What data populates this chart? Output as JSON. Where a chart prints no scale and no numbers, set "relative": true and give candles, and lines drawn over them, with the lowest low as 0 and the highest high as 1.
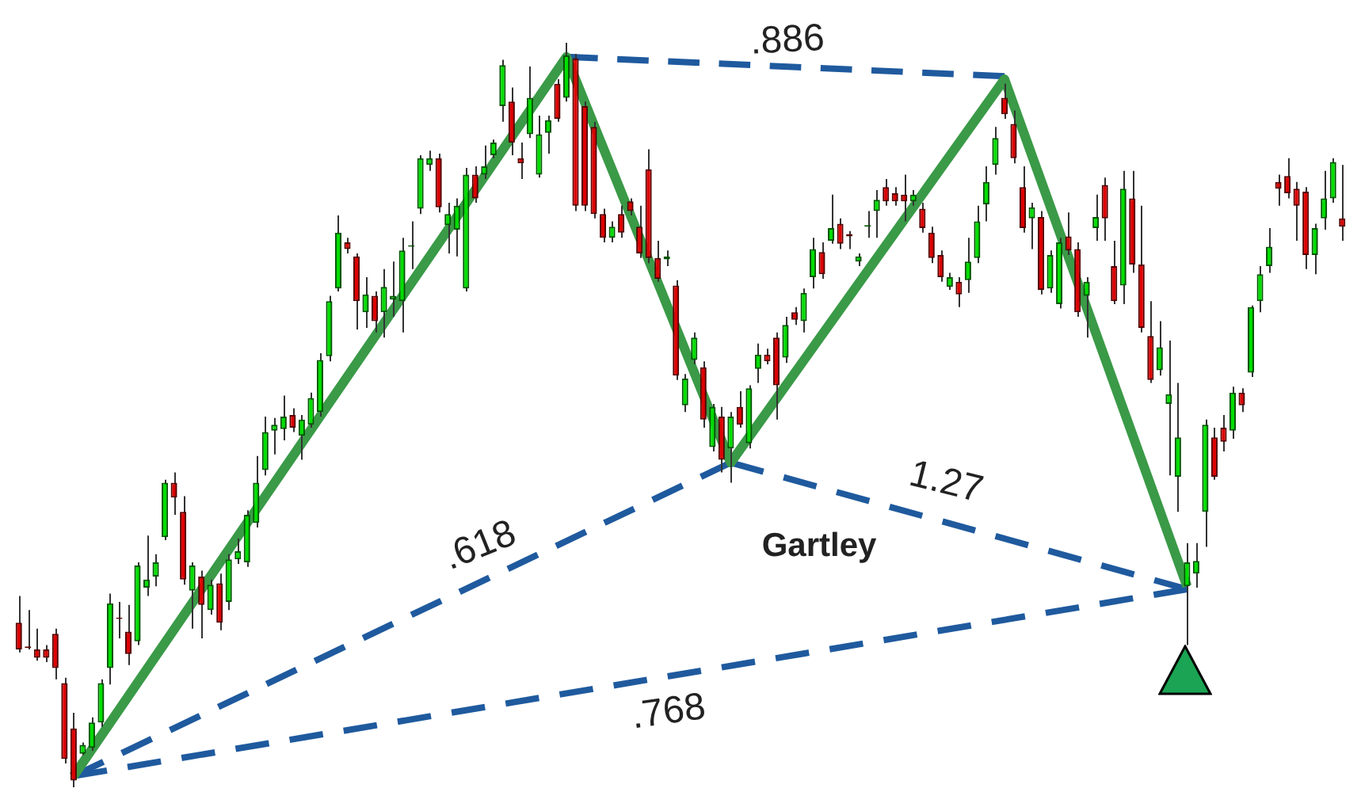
{
  "chart_data": {
    "type": "candlestick",
    "relative": true,
    "marker": "none",
    "annotations": [
      ".886",
      ".618",
      "1.27",
      ".768",
      "Gartley"
    ],
    "categories": [
      null,
      null,
      null,
      null,
      null,
      null,
      null,
      null,
      null,
      null,
      null,
      null,
      null,
      null,
      null,
      null,
      null,
      null,
      null,
      null,
      null,
      null,
      null,
      null,
      null,
      null,
      null,
      null,
      null,
      null,
      null,
      null,
      null,
      null,
      null,
      null,
      null,
      null,
      null,
      null,
      null,
      null,
      null,
      null,
      null,
      null,
      null,
      null,
      null,
      null,
      null,
      null,
      null,
      null,
      null,
      null,
      null,
      null,
      null,
      null,
      null,
      null,
      null,
      null,
      null,
      null,
      null,
      null,
      null,
      null,
      null,
      null,
      null,
      null,
      null,
      null,
      null,
      null,
      null,
      null,
      null,
      null,
      null,
      null,
      null,
      null,
      null,
      null,
      null,
      null,
      null,
      null,
      null,
      null,
      null,
      null,
      null,
      null,
      null,
      null,
      null,
      null,
      null,
      null,
      null,
      null,
      null,
      null,
      null,
      null,
      null,
      null,
      null,
      null,
      null,
      null,
      null,
      null,
      null,
      null,
      null,
      null,
      null,
      null,
      null,
      null,
      null,
      null,
      null,
      null,
      null,
      null,
      null,
      null,
      null,
      null,
      null,
      null,
      null,
      null,
      null,
      null,
      null,
      null,
      null,
      null
    ],
    "ohlc": [
      [
        0.221,
        0.257,
        0.181,
        0.185
      ],
      [
        0.189,
        0.238,
        0.185,
        0.187
      ],
      [
        0.185,
        0.213,
        0.17,
        0.174
      ],
      [
        0.185,
        0.191,
        0.168,
        0.174
      ],
      [
        0.206,
        0.213,
        0.145,
        0.16
      ],
      [
        0.14,
        0.147,
        0.032,
        0.038
      ],
      [
        0.079,
        0.1,
        0,
        0.009
      ],
      [
        0.045,
        0.06,
        0.043,
        0.057
      ],
      [
        0.053,
        0.094,
        0.049,
        0.087
      ],
      [
        0.087,
        0.145,
        0.081,
        0.14
      ],
      [
        0.16,
        0.26,
        0.138,
        0.247
      ],
      [
        0.228,
        0.249,
        0.2,
        0.226
      ],
      [
        0.209,
        0.245,
        0.164,
        0.179
      ],
      [
        0.196,
        0.302,
        0.191,
        0.298
      ],
      [
        0.268,
        0.338,
        0.257,
        0.279
      ],
      [
        0.283,
        0.313,
        0.27,
        0.302
      ],
      [
        0.336,
        0.413,
        0.332,
        0.409
      ],
      [
        0.409,
        0.423,
        0.366,
        0.389
      ],
      [
        0.37,
        0.391,
        0.272,
        0.279
      ],
      [
        0.264,
        0.302,
        0.213,
        0.298
      ],
      [
        0.283,
        0.291,
        0.2,
        0.245
      ],
      [
        0.238,
        0.279,
        0.232,
        0.272
      ],
      [
        0.274,
        0.287,
        0.211,
        0.221
      ],
      [
        0.249,
        0.313,
        0.238,
        0.306
      ],
      [
        0.306,
        0.334,
        0.3,
        0.317
      ],
      [
        0.302,
        0.372,
        0.296,
        0.366
      ],
      [
        0.355,
        0.445,
        0.349,
        0.409
      ],
      [
        0.426,
        0.498,
        0.419,
        0.477
      ],
      [
        0.479,
        0.496,
        0.447,
        0.487
      ],
      [
        0.481,
        0.526,
        0.466,
        0.498
      ],
      [
        0.5,
        0.509,
        0.477,
        0.483
      ],
      [
        0.472,
        0.5,
        0.44,
        0.494
      ],
      [
        0.487,
        0.53,
        0.483,
        0.523
      ],
      [
        0.504,
        0.583,
        0.498,
        0.574
      ],
      [
        0.579,
        0.66,
        0.572,
        0.653
      ],
      [
        0.67,
        0.768,
        0.666,
        0.745
      ],
      [
        0.732,
        0.738,
        0.717,
        0.723
      ],
      [
        0.713,
        0.717,
        0.615,
        0.653
      ],
      [
        0.638,
        0.685,
        0.617,
        0.662
      ],
      [
        0.66,
        0.666,
        0.611,
        0.626
      ],
      [
        0.638,
        0.696,
        0.604,
        0.672
      ],
      [
        0.655,
        0.706,
        0.632,
        0.66
      ],
      [
        0.653,
        0.738,
        0.611,
        0.721
      ],
      [
        0.726,
        0.76,
        0.696,
        0.728
      ],
      [
        0.777,
        0.849,
        0.77,
        0.845
      ],
      [
        0.836,
        0.855,
        0.828,
        0.845
      ],
      [
        0.845,
        0.851,
        0.772,
        0.779
      ],
      [
        0.755,
        0.785,
        0.717,
        0.77
      ],
      [
        0.749,
        0.791,
        0.713,
        0.781
      ],
      [
        0.67,
        0.832,
        0.666,
        0.823
      ],
      [
        0.823,
        0.834,
        0.785,
        0.791
      ],
      [
        0.823,
        0.862,
        0.817,
        0.834
      ],
      [
        0.849,
        0.87,
        0.845,
        0.866
      ],
      [
        0.915,
        0.977,
        0.894,
        0.97
      ],
      [
        0.921,
        0.94,
        0.849,
        0.866
      ],
      [
        0.845,
        0.866,
        0.817,
        0.838
      ],
      [
        0.877,
        0.968,
        0.872,
        0.926
      ],
      [
        0.823,
        0.902,
        0.819,
        0.877
      ],
      [
        0.879,
        0.902,
        0.851,
        0.896
      ],
      [
        0.945,
        0.951,
        0.894,
        0.898
      ],
      [
        0.926,
        1,
        0.921,
        0.983
      ],
      [
        0.979,
        0.985,
        0.774,
        0.781
      ],
      [
        0.915,
        0.921,
        0.774,
        0.781
      ],
      [
        0.887,
        0.894,
        0.764,
        0.77
      ],
      [
        0.77,
        0.777,
        0.732,
        0.738
      ],
      [
        0.738,
        0.76,
        0.732,
        0.753
      ],
      [
        0.77,
        0.781,
        0.738,
        0.745
      ],
      [
        0.787,
        0.791,
        0.768,
        0.774
      ],
      [
        0.753,
        0.781,
        0.711,
        0.717
      ],
      [
        0.83,
        0.857,
        0.704,
        0.711
      ],
      [
        0.711,
        0.734,
        0.679,
        0.683
      ],
      [
        0.709,
        0.721,
        0.7,
        0.713
      ],
      [
        0.674,
        0.681,
        0.547,
        0.553
      ],
      [
        0.513,
        0.555,
        0.504,
        0.549
      ],
      [
        0.574,
        0.611,
        0.568,
        0.604
      ],
      [
        0.564,
        0.572,
        0.483,
        0.494
      ],
      [
        0.457,
        0.515,
        0.451,
        0.511
      ],
      [
        0.498,
        0.511,
        0.423,
        0.44
      ],
      [
        0.455,
        0.504,
        0.409,
        0.498
      ],
      [
        0.511,
        0.532,
        0.483,
        0.487
      ],
      [
        0.462,
        0.54,
        0.455,
        0.536
      ],
      [
        0.562,
        0.596,
        0.543,
        0.581
      ],
      [
        0.581,
        0.589,
        0.568,
        0.572
      ],
      [
        0.604,
        0.611,
        0.494,
        0.54
      ],
      [
        0.577,
        0.632,
        0.57,
        0.621
      ],
      [
        0.638,
        0.645,
        0.621,
        0.628
      ],
      [
        0.626,
        0.67,
        0.611,
        0.664
      ],
      [
        0.685,
        0.738,
        0.67,
        0.723
      ],
      [
        0.719,
        0.732,
        0.683,
        0.689
      ],
      [
        0.734,
        0.796,
        0.73,
        0.751
      ],
      [
        0.757,
        0.764,
        0.723,
        0.73
      ],
      [
        0.743,
        0.747,
        0.723,
        0.74
      ],
      [
        0.706,
        0.717,
        0.7,
        0.713
      ],
      [
        0.753,
        0.774,
        0.738,
        0.755
      ],
      [
        0.774,
        0.802,
        0.738,
        0.789
      ],
      [
        0.806,
        0.817,
        0.781,
        0.787
      ],
      [
        0.798,
        0.806,
        0.781,
        0.787
      ],
      [
        0.796,
        0.823,
        0.76,
        0.787
      ],
      [
        0.787,
        0.802,
        0.781,
        0.796
      ],
      [
        0.777,
        0.785,
        0.745,
        0.751
      ],
      [
        0.745,
        0.753,
        0.704,
        0.711
      ],
      [
        0.715,
        0.721,
        0.679,
        0.685
      ],
      [
        0.672,
        0.691,
        0.668,
        0.685
      ],
      [
        0.679,
        0.685,
        0.645,
        0.662
      ],
      [
        0.681,
        0.738,
        0.664,
        0.706
      ],
      [
        0.711,
        0.781,
        0.704,
        0.76
      ],
      [
        0.783,
        0.834,
        0.76,
        0.813
      ],
      [
        0.836,
        0.887,
        0.823,
        0.872
      ],
      [
        0.926,
        0.945,
        0.898,
        0.904
      ],
      [
        0.891,
        0.909,
        0.838,
        0.845
      ],
      [
        0.806,
        0.834,
        0.745,
        0.751
      ],
      [
        0.764,
        0.785,
        0.723,
        0.779
      ],
      [
        0.766,
        0.774,
        0.662,
        0.668
      ],
      [
        0.67,
        0.721,
        0.664,
        0.715
      ],
      [
        0.649,
        0.738,
        0.643,
        0.732
      ],
      [
        0.74,
        0.772,
        0.715,
        0.721
      ],
      [
        0.723,
        0.732,
        0.632,
        0.638
      ],
      [
        0.66,
        0.685,
        0.604,
        0.679
      ],
      [
        0.751,
        0.796,
        0.734,
        0.766
      ],
      [
        0.809,
        0.819,
        0.734,
        0.764
      ],
      [
        0.7,
        0.734,
        0.649,
        0.653
      ],
      [
        0.674,
        0.828,
        0.649,
        0.804
      ],
      [
        0.791,
        0.828,
        0.691,
        0.702
      ],
      [
        0.702,
        0.781,
        0.611,
        0.617
      ],
      [
        0.606,
        0.653,
        0.543,
        0.547
      ],
      [
        0.56,
        0.626,
        0.553,
        0.591
      ],
      [
        0.515,
        0.6,
        0.419,
        0.528
      ],
      [
        0.417,
        0.543,
        0.37,
        0.47
      ],
      [
        0.27,
        0.328,
        0.191,
        0.302
      ],
      [
        0.287,
        0.328,
        0.268,
        0.304
      ],
      [
        0.37,
        0.494,
        0.323,
        0.487
      ],
      [
        0.47,
        0.483,
        0.413,
        0.417
      ],
      [
        0.483,
        0.5,
        0.451,
        0.464
      ],
      [
        0.479,
        0.538,
        0.468,
        0.53
      ],
      [
        0.53,
        0.536,
        0.504,
        0.513
      ],
      [
        0.557,
        0.647,
        0.551,
        0.645
      ],
      [
        0.653,
        0.7,
        0.638,
        0.689
      ],
      [
        0.7,
        0.751,
        0.691,
        0.726
      ],
      [
        0.813,
        0.823,
        0.781,
        0.804
      ],
      [
        0.821,
        0.845,
        0.791,
        0.798
      ],
      [
        0.804,
        0.813,
        0.734,
        0.781
      ],
      [
        0.8,
        0.806,
        0.696,
        0.715
      ],
      [
        0.715,
        0.757,
        0.689,
        0.751
      ],
      [
        0.764,
        0.828,
        0.749,
        0.791
      ],
      [
        0.791,
        0.845,
        0.785,
        0.84
      ],
      [
        0.764,
        0.836,
        0.734,
        0.753
      ]
    ],
    "series": [
      {
        "type": "line",
        "color": "#3a9a47",
        "line_style": "solid",
        "values": [
          null,
          null,
          null,
          null,
          null,
          null,
          0.015,
          null,
          null,
          null,
          null,
          null,
          null,
          null,
          null,
          null,
          null,
          null,
          null,
          null,
          null,
          null,
          null,
          null,
          null,
          null,
          null,
          null,
          null,
          null,
          null,
          null,
          null,
          null,
          null,
          null,
          null,
          null,
          null,
          null,
          null,
          null,
          null,
          null,
          null,
          null,
          null,
          null,
          null,
          null,
          null,
          null,
          null,
          null,
          null,
          null,
          null,
          null,
          null,
          null,
          0.981,
          null,
          null,
          null,
          null,
          null,
          null,
          null,
          null,
          null,
          null,
          null,
          null,
          null,
          null,
          null,
          null,
          null,
          0.436,
          null,
          null,
          null,
          null,
          null,
          null,
          null,
          null,
          null,
          null,
          null,
          null,
          null,
          null,
          null,
          null,
          null,
          null,
          null,
          null,
          null,
          null,
          null,
          null,
          null,
          null,
          null,
          null,
          null,
          0.951,
          null,
          null,
          null,
          null,
          null,
          null,
          null,
          null,
          null,
          null,
          null,
          null,
          null,
          null,
          null,
          null,
          null,
          null,
          null,
          0.27,
          null,
          null,
          null,
          null,
          null,
          null,
          null,
          null,
          null,
          null,
          null,
          null,
          null,
          null,
          null,
          null,
          null
        ]
      },
      {
        "type": "line",
        "color": "#1f5a9e",
        "line_style": "dashed",
        "values": [
          null,
          null,
          null,
          null,
          null,
          null,
          0.015,
          null,
          null,
          null,
          null,
          null,
          null,
          null,
          null,
          null,
          null,
          null,
          null,
          null,
          null,
          null,
          null,
          null,
          null,
          null,
          null,
          null,
          null,
          null,
          null,
          null,
          null,
          null,
          null,
          null,
          null,
          null,
          null,
          null,
          null,
          null,
          null,
          null,
          null,
          null,
          null,
          null,
          null,
          null,
          null,
          null,
          null,
          null,
          null,
          null,
          null,
          null,
          null,
          null,
          null,
          null,
          null,
          null,
          null,
          null,
          null,
          null,
          null,
          null,
          null,
          null,
          null,
          null,
          null,
          null,
          null,
          null,
          0.436,
          null,
          null,
          null,
          null,
          null,
          null,
          null,
          null,
          null,
          null,
          null,
          null,
          null,
          null,
          null,
          null,
          null,
          null,
          null,
          null,
          null,
          null,
          null,
          null,
          null,
          null,
          null,
          null,
          null,
          null,
          null,
          null,
          null,
          null,
          null,
          null,
          null,
          null,
          null,
          null,
          null,
          null,
          null,
          null,
          null,
          null,
          null,
          null,
          null,
          null,
          null,
          null,
          null,
          null,
          null,
          null,
          null,
          null,
          null,
          null,
          null,
          null,
          null,
          null,
          null,
          null,
          null
        ]
      },
      {
        "type": "line",
        "color": "#1f5a9e",
        "line_style": "dashed",
        "values": [
          null,
          null,
          null,
          null,
          null,
          null,
          0.015,
          null,
          null,
          null,
          null,
          null,
          null,
          null,
          null,
          null,
          null,
          null,
          null,
          null,
          null,
          null,
          null,
          null,
          null,
          null,
          null,
          null,
          null,
          null,
          null,
          null,
          null,
          null,
          null,
          null,
          null,
          null,
          null,
          null,
          null,
          null,
          null,
          null,
          null,
          null,
          null,
          null,
          null,
          null,
          null,
          null,
          null,
          null,
          null,
          null,
          null,
          null,
          null,
          null,
          null,
          null,
          null,
          null,
          null,
          null,
          null,
          null,
          null,
          null,
          null,
          null,
          null,
          null,
          null,
          null,
          null,
          null,
          null,
          null,
          null,
          null,
          null,
          null,
          null,
          null,
          null,
          null,
          null,
          null,
          null,
          null,
          null,
          null,
          null,
          null,
          null,
          null,
          null,
          null,
          null,
          null,
          null,
          null,
          null,
          null,
          null,
          null,
          null,
          null,
          null,
          null,
          null,
          null,
          null,
          null,
          null,
          null,
          null,
          null,
          null,
          null,
          null,
          null,
          null,
          null,
          null,
          null,
          0.266,
          null,
          null,
          null,
          null,
          null,
          null,
          null,
          null,
          null,
          null,
          null,
          null,
          null,
          null,
          null,
          null,
          null
        ]
      },
      {
        "type": "line",
        "color": "#1f5a9e",
        "line_style": "dashed",
        "values": [
          null,
          null,
          null,
          null,
          null,
          null,
          null,
          null,
          null,
          null,
          null,
          null,
          null,
          null,
          null,
          null,
          null,
          null,
          null,
          null,
          null,
          null,
          null,
          null,
          null,
          null,
          null,
          null,
          null,
          null,
          null,
          null,
          null,
          null,
          null,
          null,
          null,
          null,
          null,
          null,
          null,
          null,
          null,
          null,
          null,
          null,
          null,
          null,
          null,
          null,
          null,
          null,
          null,
          null,
          null,
          null,
          null,
          null,
          null,
          null,
          0.981,
          null,
          null,
          null,
          null,
          null,
          null,
          null,
          null,
          null,
          null,
          null,
          null,
          null,
          null,
          null,
          null,
          null,
          null,
          null,
          null,
          null,
          null,
          null,
          null,
          null,
          null,
          null,
          null,
          null,
          null,
          null,
          null,
          null,
          null,
          null,
          null,
          null,
          null,
          null,
          null,
          null,
          null,
          null,
          null,
          null,
          null,
          null,
          0.955,
          null,
          null,
          null,
          null,
          null,
          null,
          null,
          null,
          null,
          null,
          null,
          null,
          null,
          null,
          null,
          null,
          null,
          null,
          null,
          null,
          null,
          null,
          null,
          null,
          null,
          null,
          null,
          null,
          null,
          null,
          null,
          null,
          null,
          null,
          null,
          null,
          null
        ]
      },
      {
        "type": "line",
        "color": "#1f5a9e",
        "line_style": "dashed",
        "values": [
          null,
          null,
          null,
          null,
          null,
          null,
          null,
          null,
          null,
          null,
          null,
          null,
          null,
          null,
          null,
          null,
          null,
          null,
          null,
          null,
          null,
          null,
          null,
          null,
          null,
          null,
          null,
          null,
          null,
          null,
          null,
          null,
          null,
          null,
          null,
          null,
          null,
          null,
          null,
          null,
          null,
          null,
          null,
          null,
          null,
          null,
          null,
          null,
          null,
          null,
          null,
          null,
          null,
          null,
          null,
          null,
          null,
          null,
          null,
          null,
          null,
          null,
          null,
          null,
          null,
          null,
          null,
          null,
          null,
          null,
          null,
          null,
          null,
          null,
          null,
          null,
          null,
          null,
          0.436,
          null,
          null,
          null,
          null,
          null,
          null,
          null,
          null,
          null,
          null,
          null,
          null,
          null,
          null,
          null,
          null,
          null,
          null,
          null,
          null,
          null,
          null,
          null,
          null,
          null,
          null,
          null,
          null,
          null,
          null,
          null,
          null,
          null,
          null,
          null,
          null,
          null,
          null,
          null,
          null,
          null,
          null,
          null,
          null,
          null,
          null,
          null,
          null,
          null,
          0.266,
          null,
          null,
          null,
          null,
          null,
          null,
          null,
          null,
          null,
          null,
          null,
          null,
          null,
          null,
          null,
          null,
          null
        ]
      }
    ]
  }
}
